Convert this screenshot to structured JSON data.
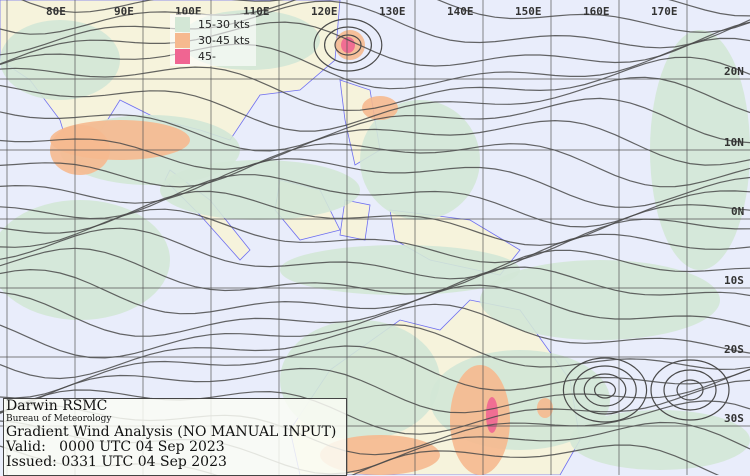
{
  "colors": {
    "background": "#e9edfb",
    "land": "#f6f3dc",
    "coast": "#6f6ff0",
    "band_15_30": "#d3e7d6",
    "band_30_45": "#f6b98f",
    "band_45": "#f06592",
    "streamline": "#4a4a4a",
    "grid": "#555555"
  },
  "lon_labels": [
    "80E",
    "90E",
    "100E",
    "110E",
    "120E",
    "130E",
    "140E",
    "150E",
    "160E",
    "170E"
  ],
  "lat_labels": [
    "20N",
    "10N",
    "0N",
    "10S",
    "20S",
    "30S"
  ],
  "legend": [
    {
      "label": "15-30 kts",
      "color": "#d3e7d6"
    },
    {
      "label": "30-45 kts",
      "color": "#f6b98f"
    },
    {
      "label": "45-",
      "color": "#f06592"
    }
  ],
  "info": {
    "center": "Darwin RSMC",
    "agency": "Bureau of Meteorology",
    "title": "Gradient Wind Analysis (NO MANUAL INPUT)",
    "valid": "Valid:   0000 UTC 04 Sep 2023",
    "issued": "Issued: 0331 UTC 04 Sep 2023"
  }
}
